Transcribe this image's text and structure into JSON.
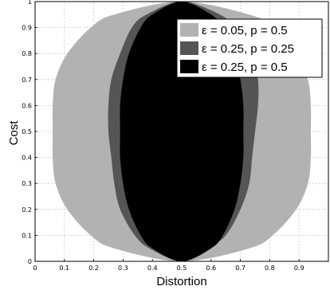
{
  "chart_data": {
    "type": "area",
    "title": "",
    "xlabel": "Distortion",
    "ylabel": "Cost",
    "xlim": [
      0,
      1
    ],
    "ylim": [
      0,
      1
    ],
    "x_ticks": [
      "0",
      "0.1",
      "0.2",
      "0.3",
      "0.4",
      "0.5",
      "0.6",
      "0.7",
      "0.8",
      "0.9"
    ],
    "y_ticks": [
      "0",
      "0.1",
      "0.2",
      "0.3",
      "0.4",
      "0.5",
      "0.6",
      "0.7",
      "0.8",
      "0.9",
      "1"
    ],
    "grid": true,
    "legend_position": "top-right",
    "series": [
      {
        "name": "ε = 0.05, p = 0.5",
        "color": "#b2b2b2",
        "region": {
          "y_min": 0,
          "y_max": 1,
          "points": [
            {
              "y": 0.0,
              "x_left": 0.5,
              "x_right": 0.5
            },
            {
              "y": 0.05,
              "x_left": 0.27,
              "x_right": 0.73
            },
            {
              "y": 0.1,
              "x_left": 0.19,
              "x_right": 0.81
            },
            {
              "y": 0.2,
              "x_left": 0.11,
              "x_right": 0.89
            },
            {
              "y": 0.3,
              "x_left": 0.07,
              "x_right": 0.93
            },
            {
              "y": 0.4,
              "x_left": 0.06,
              "x_right": 0.94
            },
            {
              "y": 0.5,
              "x_left": 0.06,
              "x_right": 0.94
            },
            {
              "y": 0.6,
              "x_left": 0.06,
              "x_right": 0.94
            },
            {
              "y": 0.7,
              "x_left": 0.07,
              "x_right": 0.93
            },
            {
              "y": 0.8,
              "x_left": 0.11,
              "x_right": 0.89
            },
            {
              "y": 0.9,
              "x_left": 0.19,
              "x_right": 0.81
            },
            {
              "y": 0.95,
              "x_left": 0.27,
              "x_right": 0.73
            },
            {
              "y": 1.0,
              "x_left": 0.5,
              "x_right": 0.5
            }
          ]
        }
      },
      {
        "name": "ε = 0.25, p = 0.25",
        "color": "#555555",
        "region": {
          "y_min": 0,
          "y_max": 1,
          "points": [
            {
              "y": 0.0,
              "x_left": 0.5,
              "x_right": 0.5
            },
            {
              "y": 0.05,
              "x_left": 0.39,
              "x_right": 0.59
            },
            {
              "y": 0.1,
              "x_left": 0.34,
              "x_right": 0.65
            },
            {
              "y": 0.2,
              "x_left": 0.29,
              "x_right": 0.7
            },
            {
              "y": 0.3,
              "x_left": 0.27,
              "x_right": 0.73
            },
            {
              "y": 0.4,
              "x_left": 0.26,
              "x_right": 0.74
            },
            {
              "y": 0.5,
              "x_left": 0.25,
              "x_right": 0.75
            },
            {
              "y": 0.6,
              "x_left": 0.25,
              "x_right": 0.76
            },
            {
              "y": 0.7,
              "x_left": 0.26,
              "x_right": 0.76
            },
            {
              "y": 0.8,
              "x_left": 0.29,
              "x_right": 0.74
            },
            {
              "y": 0.9,
              "x_left": 0.33,
              "x_right": 0.68
            },
            {
              "y": 0.95,
              "x_left": 0.38,
              "x_right": 0.63
            },
            {
              "y": 1.0,
              "x_left": 0.5,
              "x_right": 0.5
            }
          ]
        }
      },
      {
        "name": "ε = 0.25, p = 0.5",
        "color": "#000000",
        "region": {
          "y_min": 0,
          "y_max": 1,
          "points": [
            {
              "y": 0.0,
              "x_left": 0.5,
              "x_right": 0.5
            },
            {
              "y": 0.05,
              "x_left": 0.4,
              "x_right": 0.6
            },
            {
              "y": 0.1,
              "x_left": 0.36,
              "x_right": 0.64
            },
            {
              "y": 0.2,
              "x_left": 0.32,
              "x_right": 0.68
            },
            {
              "y": 0.3,
              "x_left": 0.3,
              "x_right": 0.7
            },
            {
              "y": 0.4,
              "x_left": 0.29,
              "x_right": 0.71
            },
            {
              "y": 0.5,
              "x_left": 0.29,
              "x_right": 0.71
            },
            {
              "y": 0.6,
              "x_left": 0.29,
              "x_right": 0.71
            },
            {
              "y": 0.7,
              "x_left": 0.3,
              "x_right": 0.7
            },
            {
              "y": 0.8,
              "x_left": 0.32,
              "x_right": 0.68
            },
            {
              "y": 0.9,
              "x_left": 0.36,
              "x_right": 0.64
            },
            {
              "y": 0.95,
              "x_left": 0.4,
              "x_right": 0.6
            },
            {
              "y": 1.0,
              "x_left": 0.5,
              "x_right": 0.5
            }
          ]
        }
      }
    ]
  }
}
